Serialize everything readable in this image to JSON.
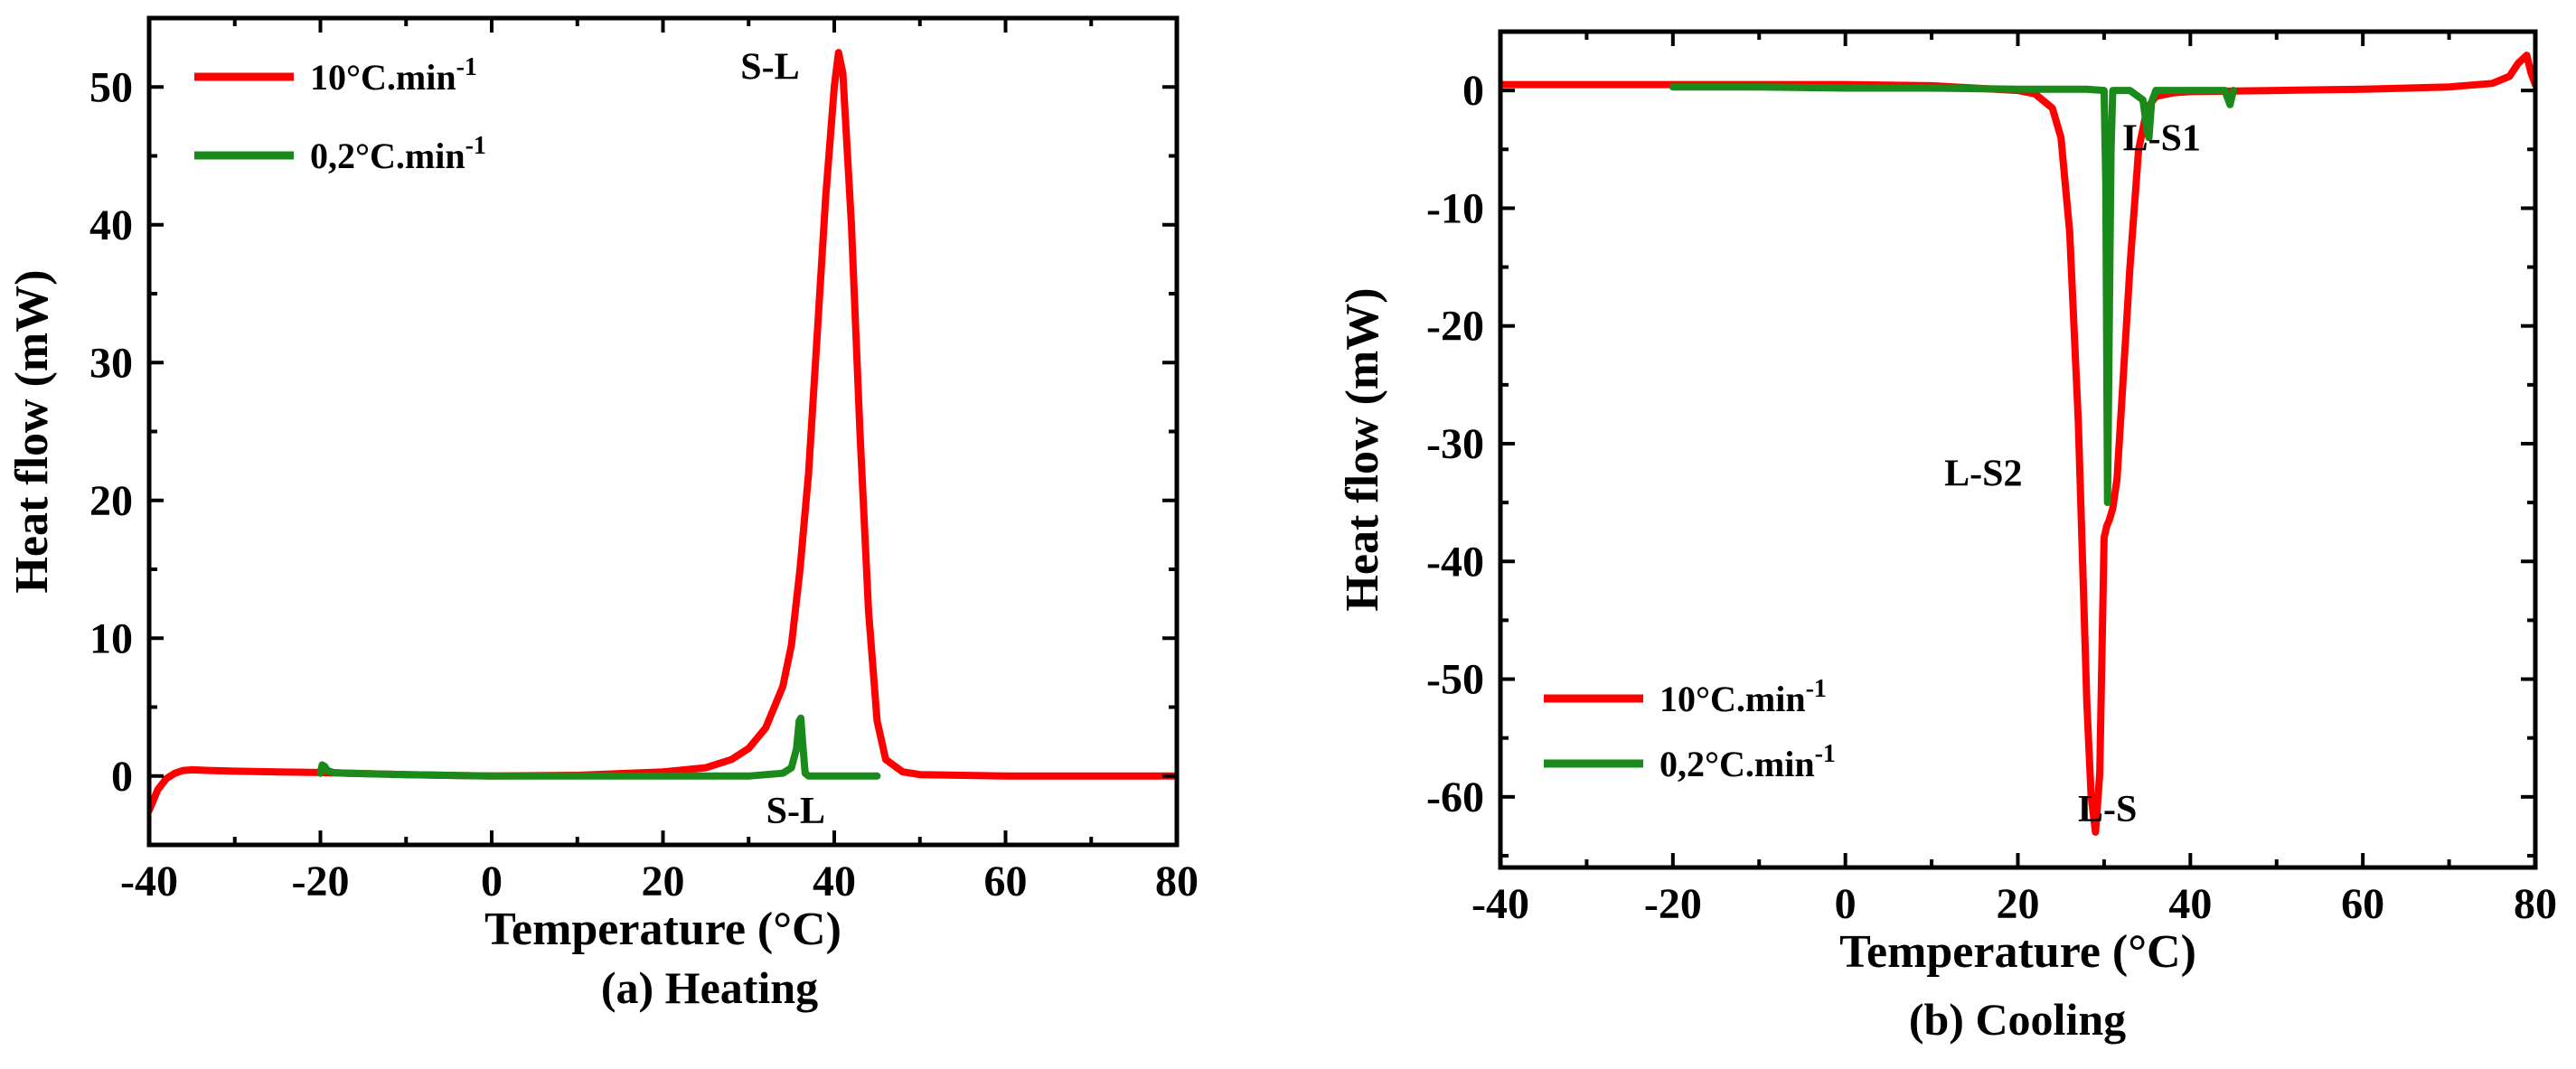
{
  "chart_data": [
    {
      "type": "line",
      "title": "",
      "caption": "(a) Heating",
      "xlabel": "Temperature (°C)",
      "ylabel": "Heat flow (mW)",
      "xlim": [
        -40,
        80
      ],
      "ylim": [
        -5,
        55
      ],
      "xticks": [
        -40,
        -20,
        0,
        20,
        40,
        60,
        80
      ],
      "yticks": [
        0,
        10,
        20,
        30,
        40,
        50
      ],
      "grid": false,
      "legend_position": "top-left",
      "series": [
        {
          "name": "10°C.min",
          "sup": "-1",
          "color": "#ff0000",
          "x": [
            -40,
            -39,
            -38,
            -37,
            -36,
            -35,
            -33,
            -30,
            -25,
            -20,
            -10,
            0,
            10,
            20,
            25,
            28,
            30,
            32,
            34,
            35,
            36,
            37,
            38,
            39,
            40,
            40.5,
            41,
            42,
            43,
            44,
            45,
            46,
            48,
            50,
            60,
            70,
            80
          ],
          "y": [
            -2.5,
            -1.0,
            -0.2,
            0.2,
            0.4,
            0.45,
            0.4,
            0.35,
            0.3,
            0.25,
            0.1,
            0.0,
            0.05,
            0.3,
            0.6,
            1.2,
            2.0,
            3.5,
            6.5,
            9.5,
            15,
            22,
            32,
            42,
            50,
            52.5,
            51,
            40,
            25,
            12,
            4,
            1.2,
            0.3,
            0.1,
            0.0,
            0.0,
            0.0
          ]
        },
        {
          "name": "0,2°C.min",
          "sup": "-1",
          "color": "#1a8a1a",
          "x": [
            -20,
            -19.8,
            -19.5,
            -19.2,
            -18.5,
            -17,
            -10,
            0,
            10,
            20,
            30,
            34,
            35,
            35.6,
            35.9,
            36.1,
            36.3,
            36.6,
            37,
            40,
            45
          ],
          "y": [
            0.2,
            0.8,
            0.7,
            0.4,
            0.25,
            0.2,
            0.1,
            0.0,
            0.0,
            0.0,
            0.0,
            0.2,
            0.6,
            2.0,
            4.0,
            4.2,
            2.5,
            0.2,
            0.0,
            0.0,
            0.0
          ]
        }
      ],
      "annotations": [
        {
          "text": "S-L",
          "x": 32.5,
          "y": 51.5
        },
        {
          "text": "S-L",
          "x": 35.5,
          "y": -2.5
        }
      ]
    },
    {
      "type": "line",
      "title": "",
      "caption": "(b) Cooling",
      "xlabel": "Temperature (°C)",
      "ylabel": "Heat flow (mW)",
      "xlim": [
        -40,
        80
      ],
      "ylim": [
        -66,
        5
      ],
      "xticks": [
        -40,
        -20,
        0,
        20,
        40,
        60,
        80
      ],
      "yticks": [
        0,
        -10,
        -20,
        -30,
        -40,
        -50,
        -60
      ],
      "grid": false,
      "legend_position": "bottom-left",
      "series": [
        {
          "name": "10°C.min",
          "sup": "-1",
          "color": "#ff0000",
          "x": [
            -40,
            -20,
            0,
            10,
            15,
            20,
            22,
            24,
            25,
            26,
            27,
            27.5,
            28,
            28.5,
            29,
            29.5,
            30,
            30.3,
            30.6,
            31,
            31.5,
            32,
            33,
            34,
            35,
            36,
            38,
            40,
            50,
            60,
            70,
            75,
            77,
            78,
            79,
            79.5,
            80
          ],
          "y": [
            0.5,
            0.5,
            0.5,
            0.4,
            0.2,
            0.0,
            -0.3,
            -1.5,
            -4,
            -12,
            -28,
            -40,
            -52,
            -60,
            -63,
            -58,
            -38,
            -37,
            -36.5,
            -35.5,
            -33,
            -27,
            -15,
            -5,
            -1.5,
            -0.5,
            -0.2,
            -0.1,
            0.0,
            0.1,
            0.3,
            0.6,
            1.2,
            2.3,
            3.0,
            1.5,
            0.5
          ]
        },
        {
          "name": "0,2°C.min",
          "sup": "-1",
          "color": "#1a8a1a",
          "x": [
            -20,
            -10,
            0,
            10,
            20,
            28,
            30,
            30.2,
            30.4,
            30.6,
            30.8,
            31,
            33,
            34.5,
            35,
            35.2,
            35.5,
            36,
            40,
            44,
            44.6,
            45
          ],
          "y": [
            0.3,
            0.3,
            0.2,
            0.2,
            0.1,
            0.1,
            0.0,
            -8,
            -35,
            -20,
            -5,
            0.0,
            0.0,
            -0.8,
            -3.5,
            -4,
            -1,
            0.0,
            0.0,
            0.0,
            -1.2,
            0.0
          ]
        }
      ],
      "annotations": [
        {
          "text": "L-S1",
          "x": 36.7,
          "y": -4
        },
        {
          "text": "L-S2",
          "x": 16,
          "y": -32.5
        },
        {
          "text": "L-S",
          "x": 30.4,
          "y": -61
        }
      ]
    }
  ]
}
